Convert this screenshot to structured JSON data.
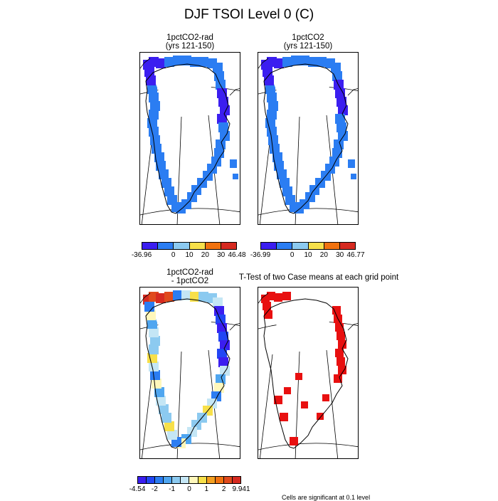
{
  "title": "DJF TSOI Level 0 (C)",
  "panels": {
    "p1": {
      "title1": "1pctCO2-rad",
      "title2": "(yrs 121-150)"
    },
    "p2": {
      "title1": "1pctCO2",
      "title2": "(yrs 121-150)"
    },
    "p3": {
      "title1": "1pctCO2-rad",
      "title2": "- 1pctCO2"
    },
    "p4": {
      "title1": "T-Test of two Case means at each grid point"
    }
  },
  "colorbars": {
    "cb1": {
      "labels": [
        "-36.96",
        "0",
        "10",
        "20",
        "30",
        "46.48"
      ],
      "colors": [
        "#3b1ef0",
        "#2b7df2",
        "#8ccaf0",
        "#f7e04a",
        "#f0720f",
        "#d62a20"
      ]
    },
    "cb2": {
      "labels": [
        "-36.99",
        "0",
        "10",
        "20",
        "30",
        "46.77"
      ],
      "colors": [
        "#3b1ef0",
        "#2b7df2",
        "#8ccaf0",
        "#f7e04a",
        "#f0720f",
        "#d62a20"
      ]
    },
    "cb3": {
      "labels": [
        "-4.54",
        "-2",
        "-1",
        "0",
        "1",
        "2",
        "9.941"
      ],
      "colors": [
        "#3b1ef0",
        "#2246f5",
        "#2b7df2",
        "#4fa6f0",
        "#8ccaf0",
        "#c4e6f5",
        "#fff7bb",
        "#f7e04a",
        "#f4a020",
        "#f0720f",
        "#e04a1c",
        "#d62a20"
      ]
    }
  },
  "footnote": "Cells are significant at 0.1 level",
  "colors": {
    "sig": "#e81010"
  },
  "chart_data": [
    {
      "type": "heatmap",
      "title": "1pctCO2-rad (yrs 121-150)",
      "range": [
        -36.96,
        46.48
      ]
    },
    {
      "type": "heatmap",
      "title": "1pctCO2 (yrs 121-150)",
      "range": [
        -36.99,
        46.77
      ]
    },
    {
      "type": "heatmap",
      "title": "1pctCO2-rad - 1pctCO2",
      "range": [
        -4.54,
        9.941
      ]
    },
    {
      "type": "heatmap",
      "title": "T-Test of two Case means at each grid point"
    }
  ]
}
